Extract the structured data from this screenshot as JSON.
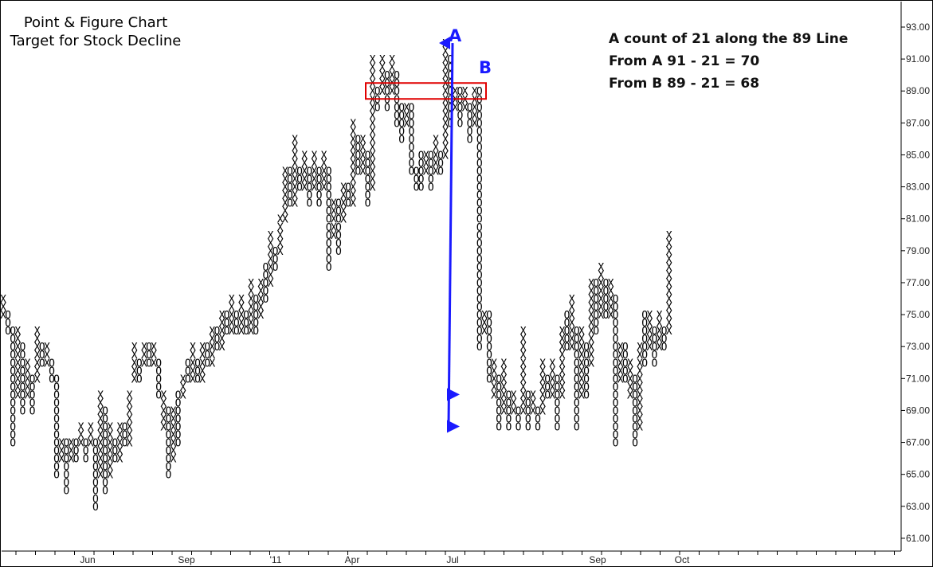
{
  "chart_data": {
    "type": "point-and-figure",
    "title": "Point & Figure Chart",
    "subtitle": "Target for Stock Decline",
    "y_axis": {
      "position": "right",
      "range": [
        60,
        94
      ],
      "ticks": [
        "93.00",
        "91.00",
        "89.00",
        "87.00",
        "85.00",
        "83.00",
        "81.00",
        "79.00",
        "77.00",
        "75.00",
        "73.00",
        "71.00",
        "69.00",
        "67.00",
        "65.00",
        "63.00",
        "61.00"
      ]
    },
    "x_axis": {
      "labels": [
        "Jun",
        "Sep",
        "'11",
        "Apr",
        "Jul",
        "Sep",
        "Oct"
      ]
    },
    "columns": [
      {
        "t": "X",
        "lo": 75,
        "hi": 76
      },
      {
        "t": "O",
        "lo": 74,
        "hi": 75
      },
      {
        "t": "O",
        "lo": 67,
        "hi": 74
      },
      {
        "t": "X",
        "lo": 70,
        "hi": 74
      },
      {
        "t": "O",
        "lo": 69,
        "hi": 73
      },
      {
        "t": "X",
        "lo": 70,
        "hi": 72
      },
      {
        "t": "O",
        "lo": 69,
        "hi": 71
      },
      {
        "t": "X",
        "lo": 71,
        "hi": 74
      },
      {
        "t": "O",
        "lo": 72,
        "hi": 73
      },
      {
        "t": "X",
        "lo": 72,
        "hi": 73
      },
      {
        "t": "O",
        "lo": 71,
        "hi": 72
      },
      {
        "t": "O",
        "lo": 65,
        "hi": 71
      },
      {
        "t": "X",
        "lo": 66,
        "hi": 67
      },
      {
        "t": "O",
        "lo": 64,
        "hi": 67
      },
      {
        "t": "X",
        "lo": 66,
        "hi": 67
      },
      {
        "t": "O",
        "lo": 66,
        "hi": 67
      },
      {
        "t": "X",
        "lo": 67,
        "hi": 68
      },
      {
        "t": "O",
        "lo": 66,
        "hi": 67
      },
      {
        "t": "X",
        "lo": 67,
        "hi": 68
      },
      {
        "t": "O",
        "lo": 63,
        "hi": 67
      },
      {
        "t": "X",
        "lo": 65,
        "hi": 70
      },
      {
        "t": "O",
        "lo": 64,
        "hi": 69
      },
      {
        "t": "X",
        "lo": 65,
        "hi": 68
      },
      {
        "t": "O",
        "lo": 66,
        "hi": 67
      },
      {
        "t": "X",
        "lo": 66,
        "hi": 68
      },
      {
        "t": "O",
        "lo": 67,
        "hi": 68
      },
      {
        "t": "X",
        "lo": 67,
        "hi": 70
      },
      {
        "t": "X",
        "lo": 71,
        "hi": 73
      },
      {
        "t": "O",
        "lo": 71,
        "hi": 72
      },
      {
        "t": "X",
        "lo": 72,
        "hi": 73
      },
      {
        "t": "O",
        "lo": 72,
        "hi": 73
      },
      {
        "t": "X",
        "lo": 72,
        "hi": 73
      },
      {
        "t": "O",
        "lo": 70,
        "hi": 72
      },
      {
        "t": "X",
        "lo": 68,
        "hi": 70
      },
      {
        "t": "O",
        "lo": 65,
        "hi": 69
      },
      {
        "t": "X",
        "lo": 66,
        "hi": 69
      },
      {
        "t": "O",
        "lo": 67,
        "hi": 70
      },
      {
        "t": "X",
        "lo": 70,
        "hi": 71
      },
      {
        "t": "O",
        "lo": 71,
        "hi": 72
      },
      {
        "t": "X",
        "lo": 71,
        "hi": 73
      },
      {
        "t": "O",
        "lo": 71,
        "hi": 72
      },
      {
        "t": "X",
        "lo": 71,
        "hi": 73
      },
      {
        "t": "O",
        "lo": 72,
        "hi": 73
      },
      {
        "t": "X",
        "lo": 72,
        "hi": 74
      },
      {
        "t": "O",
        "lo": 73,
        "hi": 74
      },
      {
        "t": "X",
        "lo": 73,
        "hi": 75
      },
      {
        "t": "O",
        "lo": 74,
        "hi": 75
      },
      {
        "t": "X",
        "lo": 74,
        "hi": 76
      },
      {
        "t": "O",
        "lo": 74,
        "hi": 75
      },
      {
        "t": "X",
        "lo": 74,
        "hi": 76
      },
      {
        "t": "O",
        "lo": 74,
        "hi": 75
      },
      {
        "t": "X",
        "lo": 74,
        "hi": 77
      },
      {
        "t": "O",
        "lo": 74,
        "hi": 76
      },
      {
        "t": "X",
        "lo": 75,
        "hi": 77
      },
      {
        "t": "O",
        "lo": 76,
        "hi": 78
      },
      {
        "t": "X",
        "lo": 77,
        "hi": 80
      },
      {
        "t": "O",
        "lo": 78,
        "hi": 79
      },
      {
        "t": "X",
        "lo": 79,
        "hi": 81
      },
      {
        "t": "X",
        "lo": 81,
        "hi": 84
      },
      {
        "t": "O",
        "lo": 82,
        "hi": 84
      },
      {
        "t": "X",
        "lo": 82,
        "hi": 86
      },
      {
        "t": "O",
        "lo": 83,
        "hi": 84
      },
      {
        "t": "X",
        "lo": 83,
        "hi": 85
      },
      {
        "t": "O",
        "lo": 82,
        "hi": 84
      },
      {
        "t": "X",
        "lo": 83,
        "hi": 85
      },
      {
        "t": "O",
        "lo": 82,
        "hi": 84
      },
      {
        "t": "X",
        "lo": 83,
        "hi": 85
      },
      {
        "t": "O",
        "lo": 78,
        "hi": 84
      },
      {
        "t": "X",
        "lo": 80,
        "hi": 82
      },
      {
        "t": "O",
        "lo": 79,
        "hi": 82
      },
      {
        "t": "X",
        "lo": 81,
        "hi": 83
      },
      {
        "t": "O",
        "lo": 82,
        "hi": 83
      },
      {
        "t": "X",
        "lo": 82,
        "hi": 87
      },
      {
        "t": "O",
        "lo": 84,
        "hi": 86
      },
      {
        "t": "X",
        "lo": 84,
        "hi": 86
      },
      {
        "t": "O",
        "lo": 82,
        "hi": 85
      },
      {
        "t": "X",
        "lo": 83,
        "hi": 91
      },
      {
        "t": "O",
        "lo": 88,
        "hi": 89
      },
      {
        "t": "X",
        "lo": 89,
        "hi": 91
      },
      {
        "t": "O",
        "lo": 88,
        "hi": 90
      },
      {
        "t": "X",
        "lo": 89,
        "hi": 91
      },
      {
        "t": "O",
        "lo": 87,
        "hi": 90
      },
      {
        "t": "O",
        "lo": 86,
        "hi": 88
      },
      {
        "t": "X",
        "lo": 87,
        "hi": 88
      },
      {
        "t": "O",
        "lo": 84,
        "hi": 88
      },
      {
        "t": "O",
        "lo": 83,
        "hi": 84
      },
      {
        "t": "O",
        "lo": 83,
        "hi": 85
      },
      {
        "t": "X",
        "lo": 84,
        "hi": 85
      },
      {
        "t": "O",
        "lo": 83,
        "hi": 85
      },
      {
        "t": "X",
        "lo": 84,
        "hi": 86
      },
      {
        "t": "O",
        "lo": 84,
        "hi": 85
      },
      {
        "t": "X",
        "lo": 85,
        "hi": 92
      },
      {
        "t": "O",
        "lo": 87,
        "hi": 91
      },
      {
        "t": "X",
        "lo": 88,
        "hi": 89
      },
      {
        "t": "O",
        "lo": 87,
        "hi": 89
      },
      {
        "t": "X",
        "lo": 88,
        "hi": 89
      },
      {
        "t": "O",
        "lo": 86,
        "hi": 88
      },
      {
        "t": "X",
        "lo": 87,
        "hi": 89
      },
      {
        "t": "O",
        "lo": 73,
        "hi": 89
      },
      {
        "t": "X",
        "lo": 74,
        "hi": 75
      },
      {
        "t": "O",
        "lo": 71,
        "hi": 75
      },
      {
        "t": "X",
        "lo": 70,
        "hi": 72
      },
      {
        "t": "O",
        "lo": 68,
        "hi": 71
      },
      {
        "t": "X",
        "lo": 69,
        "hi": 72
      },
      {
        "t": "O",
        "lo": 68,
        "hi": 70
      },
      {
        "t": "X",
        "lo": 69,
        "hi": 70
      },
      {
        "t": "O",
        "lo": 68,
        "hi": 69
      },
      {
        "t": "X",
        "lo": 69,
        "hi": 74
      },
      {
        "t": "O",
        "lo": 68,
        "hi": 70
      },
      {
        "t": "X",
        "lo": 69,
        "hi": 70
      },
      {
        "t": "O",
        "lo": 68,
        "hi": 69
      },
      {
        "t": "X",
        "lo": 69,
        "hi": 72
      },
      {
        "t": "O",
        "lo": 70,
        "hi": 71
      },
      {
        "t": "X",
        "lo": 70,
        "hi": 72
      },
      {
        "t": "O",
        "lo": 68,
        "hi": 71
      },
      {
        "t": "X",
        "lo": 70,
        "hi": 74
      },
      {
        "t": "O",
        "lo": 73,
        "hi": 75
      },
      {
        "t": "X",
        "lo": 73,
        "hi": 76
      },
      {
        "t": "O",
        "lo": 68,
        "hi": 74
      },
      {
        "t": "X",
        "lo": 70,
        "hi": 74
      },
      {
        "t": "O",
        "lo": 70,
        "hi": 73
      },
      {
        "t": "X",
        "lo": 72,
        "hi": 77
      },
      {
        "t": "O",
        "lo": 74,
        "hi": 77
      },
      {
        "t": "X",
        "lo": 75,
        "hi": 78
      },
      {
        "t": "O",
        "lo": 75,
        "hi": 77
      },
      {
        "t": "X",
        "lo": 75,
        "hi": 77
      },
      {
        "t": "O",
        "lo": 67,
        "hi": 76
      },
      {
        "t": "X",
        "lo": 71,
        "hi": 73
      },
      {
        "t": "O",
        "lo": 71,
        "hi": 73
      },
      {
        "t": "X",
        "lo": 70,
        "hi": 72
      },
      {
        "t": "O",
        "lo": 67,
        "hi": 71
      },
      {
        "t": "X",
        "lo": 68,
        "hi": 73
      },
      {
        "t": "O",
        "lo": 72,
        "hi": 75
      },
      {
        "t": "X",
        "lo": 73,
        "hi": 75
      },
      {
        "t": "O",
        "lo": 72,
        "hi": 74
      },
      {
        "t": "X",
        "lo": 73,
        "hi": 75
      },
      {
        "t": "O",
        "lo": 73,
        "hi": 74
      },
      {
        "t": "X",
        "lo": 74,
        "hi": 80
      }
    ],
    "annotations": {
      "label_a": "A",
      "label_b": "B",
      "note_line1": "A count of 21 along the 89 Line",
      "note_line2": "From A 91 - 21 = 70",
      "note_line3": "From B 89 - 21 = 68"
    },
    "count_box_level": 89,
    "trendline": {
      "from_price": 92,
      "to_price": 68
    },
    "target_markers": [
      70,
      68
    ],
    "colors": {
      "annotation_line": "#1a1aff",
      "count_box": "#e00000",
      "plot": "#000000"
    }
  }
}
